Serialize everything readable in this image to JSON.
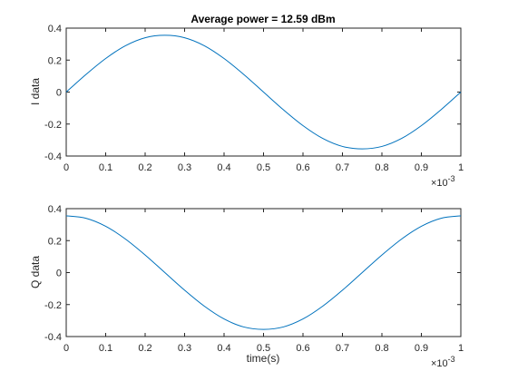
{
  "chart_data": [
    {
      "type": "line",
      "title": "Average power = 12.59 dBm",
      "xlabel": "",
      "ylabel": "I data",
      "xlim": [
        0,
        0.001
      ],
      "ylim": [
        -0.4,
        0.4
      ],
      "x_ticks": [
        "0",
        "0.1",
        "0.2",
        "0.3",
        "0.4",
        "0.5",
        "0.6",
        "0.7",
        "0.8",
        "0.9",
        "1"
      ],
      "x_tick_values": [
        0,
        0.0001,
        0.0002,
        0.0003,
        0.0004,
        0.0005,
        0.0006,
        0.0007,
        0.0008,
        0.0009,
        0.001
      ],
      "y_ticks": [
        "-0.4",
        "-0.2",
        "0",
        "0.2",
        "0.4"
      ],
      "y_tick_values": [
        -0.4,
        -0.2,
        0,
        0.2,
        0.4
      ],
      "x_exponent": {
        "base": "×10",
        "power": "-3"
      },
      "grid": false,
      "color": "#0072BD",
      "series": [
        {
          "x": [
            0,
            5e-05,
            0.0001,
            0.00015,
            0.0002,
            0.00025,
            0.0003,
            0.00035,
            0.0004,
            0.00045,
            0.0005,
            0.00055,
            0.0006,
            0.00065,
            0.0007,
            0.00075,
            0.0008,
            0.00085,
            0.0009,
            0.00095,
            0.001
          ],
          "y": [
            0,
            0.11,
            0.21,
            0.29,
            0.34,
            0.355,
            0.34,
            0.29,
            0.21,
            0.11,
            0,
            -0.11,
            -0.21,
            -0.29,
            -0.34,
            -0.355,
            -0.34,
            -0.29,
            -0.21,
            -0.11,
            0
          ]
        }
      ]
    },
    {
      "type": "line",
      "title": "",
      "xlabel": "time(s)",
      "ylabel": "Q data",
      "xlim": [
        0,
        0.001
      ],
      "ylim": [
        -0.4,
        0.4
      ],
      "x_ticks": [
        "0",
        "0.1",
        "0.2",
        "0.3",
        "0.4",
        "0.5",
        "0.6",
        "0.7",
        "0.8",
        "0.9",
        "1"
      ],
      "x_tick_values": [
        0,
        0.0001,
        0.0002,
        0.0003,
        0.0004,
        0.0005,
        0.0006,
        0.0007,
        0.0008,
        0.0009,
        0.001
      ],
      "y_ticks": [
        "-0.4",
        "-0.2",
        "0",
        "0.2",
        "0.4"
      ],
      "y_tick_values": [
        -0.4,
        -0.2,
        0,
        0.2,
        0.4
      ],
      "x_exponent": {
        "base": "×10",
        "power": "-3"
      },
      "grid": false,
      "color": "#0072BD",
      "series": [
        {
          "x": [
            0,
            5e-05,
            0.0001,
            0.00015,
            0.0002,
            0.00025,
            0.0003,
            0.00035,
            0.0004,
            0.00045,
            0.0005,
            0.00055,
            0.0006,
            0.00065,
            0.0007,
            0.00075,
            0.0008,
            0.00085,
            0.0009,
            0.00095,
            0.001
          ],
          "y": [
            0.355,
            0.34,
            0.29,
            0.21,
            0.11,
            0,
            -0.11,
            -0.21,
            -0.29,
            -0.34,
            -0.355,
            -0.34,
            -0.29,
            -0.21,
            -0.11,
            0,
            0.11,
            0.21,
            0.29,
            0.34,
            0.355
          ]
        }
      ]
    }
  ]
}
